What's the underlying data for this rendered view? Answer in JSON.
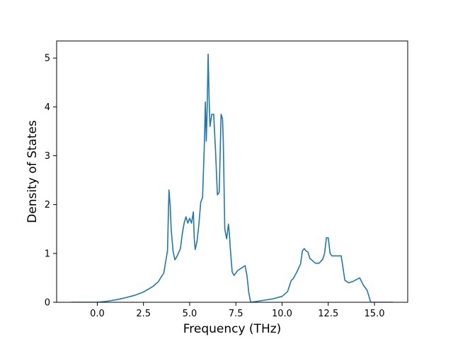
{
  "chart_data": {
    "type": "line",
    "title": "",
    "xlabel": "Frequency (THz)",
    "ylabel": "Density of States",
    "xlim": [
      -2.2,
      16.8
    ],
    "ylim": [
      0,
      5.35
    ],
    "xticks": [
      0.0,
      2.5,
      5.0,
      7.5,
      10.0,
      12.5,
      15.0
    ],
    "xtick_labels": [
      "0.0",
      "2.5",
      "5.0",
      "7.5",
      "10.0",
      "12.5",
      "15.0"
    ],
    "yticks": [
      0,
      1,
      2,
      3,
      4,
      5
    ],
    "ytick_labels": [
      "0",
      "1",
      "2",
      "3",
      "4",
      "5"
    ],
    "grid": false,
    "line_color": "#1f77b4",
    "series": [
      {
        "x": [
          -1.4,
          0.0,
          0.5,
          1.0,
          1.5,
          2.0,
          2.5,
          3.0,
          3.3,
          3.6,
          3.8,
          3.88,
          3.95,
          4.0,
          4.1,
          4.2,
          4.3,
          4.5,
          4.6,
          4.7,
          4.8,
          4.9,
          5.0,
          5.1,
          5.2,
          5.25,
          5.3,
          5.4,
          5.5,
          5.6,
          5.7,
          5.8,
          5.85,
          5.9,
          5.95,
          6.0,
          6.05,
          6.1,
          6.2,
          6.3,
          6.4,
          6.5,
          6.6,
          6.7,
          6.78,
          6.82,
          6.9,
          7.0,
          7.1,
          7.15,
          7.2,
          7.3,
          7.4,
          7.5,
          7.6,
          7.8,
          8.0,
          8.1,
          8.2,
          8.3,
          8.5,
          9.0,
          9.5,
          10.0,
          10.3,
          10.5,
          10.6,
          10.7,
          10.8,
          11.0,
          11.1,
          11.2,
          11.3,
          11.4,
          11.5,
          11.8,
          12.0,
          12.2,
          12.3,
          12.4,
          12.5,
          12.6,
          12.7,
          13.0,
          13.2,
          13.4,
          13.6,
          13.8,
          14.0,
          14.2,
          14.4,
          14.5,
          14.6,
          14.8,
          15.0,
          15.5,
          16.0
        ],
        "y": [
          0.0,
          0.0,
          0.02,
          0.05,
          0.09,
          0.14,
          0.21,
          0.32,
          0.42,
          0.6,
          1.05,
          2.3,
          1.95,
          1.5,
          1.05,
          0.87,
          0.93,
          1.1,
          1.4,
          1.62,
          1.75,
          1.62,
          1.72,
          1.62,
          1.85,
          1.3,
          1.08,
          1.25,
          1.6,
          2.05,
          2.15,
          3.3,
          4.1,
          3.3,
          4.0,
          5.08,
          4.2,
          3.6,
          3.85,
          3.85,
          3.1,
          2.2,
          2.25,
          3.85,
          3.75,
          3.3,
          1.5,
          1.3,
          1.6,
          1.4,
          1.1,
          0.62,
          0.55,
          0.6,
          0.65,
          0.7,
          0.75,
          0.55,
          0.2,
          0.0,
          0.01,
          0.04,
          0.07,
          0.12,
          0.22,
          0.45,
          0.48,
          0.55,
          0.62,
          0.78,
          1.05,
          1.1,
          1.05,
          1.03,
          0.9,
          0.8,
          0.8,
          0.88,
          1.0,
          1.32,
          1.32,
          1.0,
          0.95,
          0.95,
          0.95,
          0.45,
          0.4,
          0.42,
          0.46,
          0.5,
          0.35,
          0.3,
          0.25,
          0.0,
          0.0,
          0.0,
          0.0
        ]
      }
    ]
  }
}
